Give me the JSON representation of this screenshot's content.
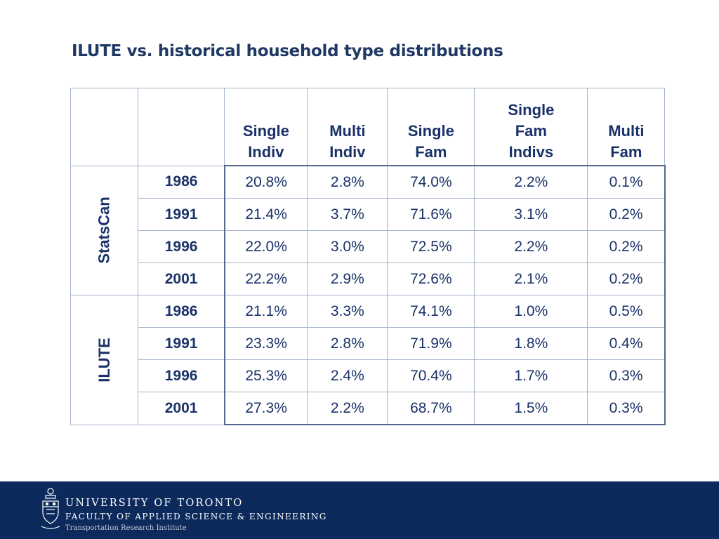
{
  "title": "ILUTE vs. historical household type distributions",
  "table": {
    "headers": [
      "Single Indiv",
      "Multi Indiv",
      "Single Fam",
      "Single Fam Indivs",
      "Multi Fam"
    ],
    "groups": [
      {
        "label": "StatsCan",
        "rows": [
          {
            "year": "1986",
            "values": [
              "20.8%",
              "2.8%",
              "74.0%",
              "2.2%",
              "0.1%"
            ]
          },
          {
            "year": "1991",
            "values": [
              "21.4%",
              "3.7%",
              "71.6%",
              "3.1%",
              "0.2%"
            ]
          },
          {
            "year": "1996",
            "values": [
              "22.0%",
              "3.0%",
              "72.5%",
              "2.2%",
              "0.2%"
            ]
          },
          {
            "year": "2001",
            "values": [
              "22.2%",
              "2.9%",
              "72.6%",
              "2.1%",
              "0.2%"
            ]
          }
        ]
      },
      {
        "label": "ILUTE",
        "rows": [
          {
            "year": "1986",
            "values": [
              "21.1%",
              "3.3%",
              "74.1%",
              "1.0%",
              "0.5%"
            ]
          },
          {
            "year": "1991",
            "values": [
              "23.3%",
              "2.8%",
              "71.9%",
              "1.8%",
              "0.4%"
            ]
          },
          {
            "year": "1996",
            "values": [
              "25.3%",
              "2.4%",
              "70.4%",
              "1.7%",
              "0.3%"
            ]
          },
          {
            "year": "2001",
            "values": [
              "27.3%",
              "2.2%",
              "68.7%",
              "1.5%",
              "0.3%"
            ]
          }
        ]
      }
    ]
  },
  "footer": {
    "university": "UNIVERSITY OF TORONTO",
    "faculty": "FACULTY OF APPLIED SCIENCE & ENGINEERING",
    "institute": "Transportation Research Institute",
    "background_color": "#0c2a5c",
    "crest_icon": "university-crest-icon"
  },
  "colors": {
    "title": "#1f3864",
    "table_text": "#1a3268",
    "grid": "#a6b4cc"
  }
}
